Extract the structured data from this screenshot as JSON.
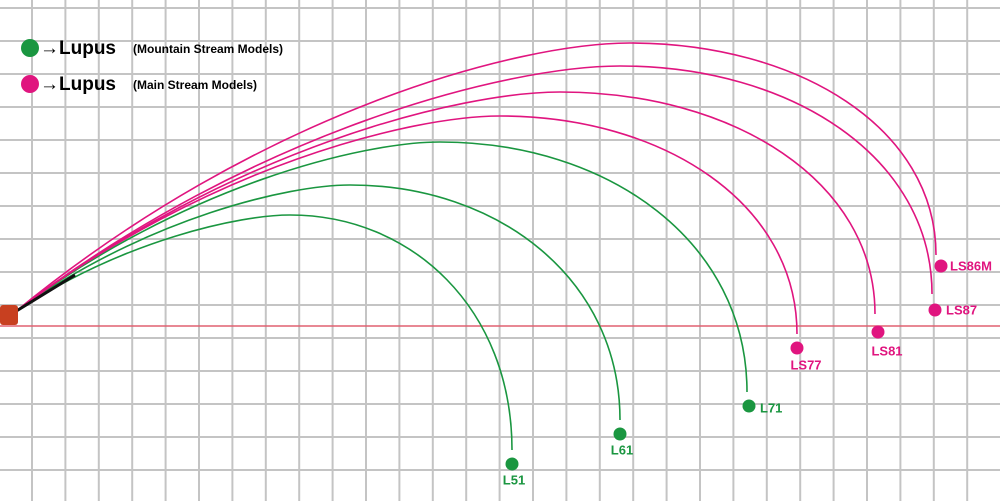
{
  "legend": [
    {
      "symbol": "→Lupus",
      "note": "(Mountain Stream Models)"
    },
    {
      "symbol": "→Lupus",
      "note": "(Main Stream Models)"
    }
  ],
  "curves": [
    {
      "label": "L51"
    },
    {
      "label": "L61"
    },
    {
      "label": "L71"
    },
    {
      "label": "LS77"
    },
    {
      "label": "LS81"
    },
    {
      "label": "LS87"
    },
    {
      "label": "LS86M"
    }
  ]
}
